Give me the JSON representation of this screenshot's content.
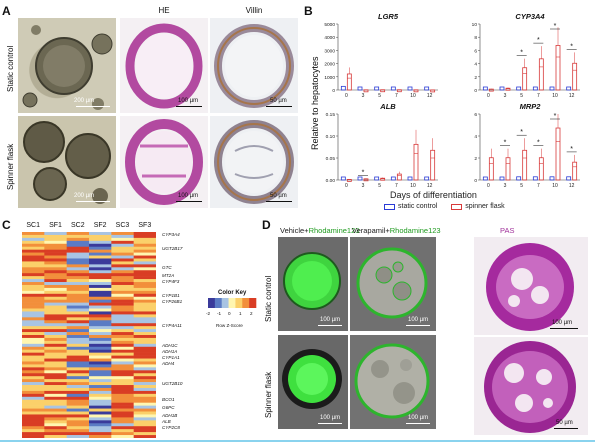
{
  "panel_a": {
    "letter": "A",
    "col_titles": [
      "HE",
      "Villin"
    ],
    "row_labels": [
      "Static control",
      "Spinner flask"
    ],
    "scales": [
      "200 µm",
      "100 µm",
      "50 µm",
      "200 µm",
      "100 µm",
      "50 µm"
    ]
  },
  "panel_b": {
    "letter": "B",
    "y_label": "Relative to hepatocytes",
    "x_label": "Days of differentiation",
    "legend": [
      "static control",
      "spinner flask"
    ],
    "colors": {
      "static": "#2a3bd6",
      "spinner": "#d83a3a"
    }
  },
  "panel_c": {
    "letter": "C",
    "columns": [
      "SC1",
      "SF1",
      "SC2",
      "SF2",
      "SC3",
      "SF3"
    ],
    "genes": [
      "CYP3A4",
      "UGT2B17",
      "GTC",
      "MT2A",
      "CYP4F3",
      "CYP1B1",
      "CYP26B1",
      "CYP4A11",
      "ADH1C",
      "ADH1A",
      "CYP1A1",
      "ADH4",
      "UGT2B10",
      "BCO1",
      "G6PC",
      "ADH1B",
      "ALB",
      "CYP2C8"
    ],
    "color_key": {
      "title": "Color Key",
      "ticks": [
        "-2",
        "-1",
        "0",
        "1",
        "2"
      ],
      "subtitle": "Row Z-Score"
    }
  },
  "panel_d": {
    "letter": "D",
    "titles": [
      {
        "a": "Vehicle+",
        "b": "Rhodamine123"
      },
      {
        "a": "Verapamil+",
        "b": "Rhodamine123"
      },
      {
        "a": "PAS",
        "b": ""
      }
    ],
    "row_labels": [
      "Static control",
      "Spinner flask"
    ],
    "scales": [
      "100 µm",
      "100 µm",
      "100 µm",
      "100 µm",
      "100 µm",
      "50 µm"
    ]
  },
  "chart_data": [
    {
      "type": "box",
      "title": "LGR5",
      "categories": [
        "0",
        "3",
        "5",
        "7",
        "10",
        "12"
      ],
      "ylim": [
        0,
        5000
      ],
      "yticks": [
        "0",
        "1000",
        "2000",
        "3000",
        "4000",
        "5000"
      ],
      "series": [
        {
          "name": "static control",
          "values": [
            200,
            5,
            5,
            5,
            5,
            5
          ]
        },
        {
          "name": "spinner flask",
          "values": [
            900,
            10,
            15,
            15,
            10,
            5
          ]
        }
      ],
      "significant": []
    },
    {
      "type": "box",
      "title": "CYP3A4",
      "categories": [
        "0",
        "3",
        "5",
        "7",
        "10",
        "12"
      ],
      "ylim": [
        0,
        10
      ],
      "yticks": [
        "0",
        "2",
        "4",
        "6",
        "8",
        "10"
      ],
      "series": [
        {
          "name": "static control",
          "values": [
            0.1,
            0.1,
            0.2,
            0.2,
            0.2,
            0.2
          ]
        },
        {
          "name": "spinner flask",
          "values": [
            0.1,
            0.2,
            2.5,
            3.5,
            5,
            3
          ]
        }
      ],
      "significant": [
        "5",
        "7",
        "10",
        "12"
      ]
    },
    {
      "type": "box",
      "title": "ALB",
      "categories": [
        "0",
        "3",
        "5",
        "7",
        "10",
        "12"
      ],
      "ylim": [
        0,
        0.15
      ],
      "yticks": [
        "0.00",
        "0.05",
        "0.10",
        "0.15"
      ],
      "series": [
        {
          "name": "static control",
          "values": [
            0.001,
            0.001,
            0.001,
            0.002,
            0.002,
            0.002
          ]
        },
        {
          "name": "spinner flask",
          "values": [
            0.001,
            0.002,
            0.003,
            0.01,
            0.06,
            0.05
          ]
        }
      ],
      "significant": [
        "3"
      ]
    },
    {
      "type": "box",
      "title": "MRP2",
      "categories": [
        "0",
        "3",
        "5",
        "7",
        "10",
        "12"
      ],
      "ylim": [
        0,
        6
      ],
      "yticks": [
        "0",
        "2",
        "4",
        "6"
      ],
      "series": [
        {
          "name": "static control",
          "values": [
            0.1,
            0.1,
            0.2,
            0.2,
            0.2,
            0.2
          ]
        },
        {
          "name": "spinner flask",
          "values": [
            1.5,
            1.5,
            2,
            1.5,
            3.5,
            1.2
          ]
        }
      ],
      "significant": [
        "3",
        "5",
        "7",
        "10",
        "12"
      ]
    }
  ]
}
